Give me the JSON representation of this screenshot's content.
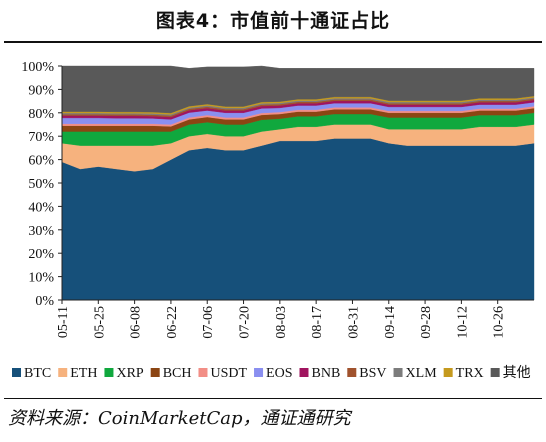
{
  "title": "图表4：市值前十通证占比",
  "source": "资料来源：CoinMarketCap，通证通研究",
  "chart_data": {
    "type": "area",
    "stacked": true,
    "title": "图表4：市值前十通证占比",
    "xlabel": "",
    "ylabel": "",
    "ylim": [
      0,
      100
    ],
    "y_ticks": [
      "0%",
      "10%",
      "20%",
      "30%",
      "40%",
      "50%",
      "60%",
      "70%",
      "80%",
      "90%",
      "100%"
    ],
    "x_tick_labels": [
      "05-11",
      "05-25",
      "06-08",
      "06-22",
      "07-06",
      "07-20",
      "08-03",
      "08-17",
      "08-31",
      "09-14",
      "09-28",
      "10-12",
      "10-26"
    ],
    "x": [
      "05-11",
      "05-18",
      "05-25",
      "06-01",
      "06-08",
      "06-15",
      "06-22",
      "06-29",
      "07-06",
      "07-13",
      "07-20",
      "07-27",
      "08-03",
      "08-10",
      "08-17",
      "08-24",
      "08-31",
      "09-07",
      "09-14",
      "09-21",
      "09-28",
      "10-05",
      "10-12",
      "10-19",
      "10-26",
      "11-02",
      "11-05"
    ],
    "legend_position": "bottom",
    "grid": false,
    "series": [
      {
        "name": "BTC",
        "color": "#16507a",
        "values": [
          59,
          56,
          57,
          56,
          55,
          56,
          60,
          64,
          65,
          64,
          64,
          66,
          68,
          68,
          68,
          69,
          69,
          69,
          67,
          66,
          66,
          66,
          66,
          66,
          66,
          66,
          67
        ]
      },
      {
        "name": "ETH",
        "color": "#f6b27e",
        "values": [
          8,
          10,
          9,
          10,
          11,
          10,
          7,
          6,
          6,
          6,
          6,
          6,
          5,
          6,
          6,
          6,
          6,
          6,
          6,
          7,
          7,
          7,
          7,
          8,
          8,
          8,
          8
        ]
      },
      {
        "name": "XRP",
        "color": "#10a83e",
        "values": [
          5,
          6,
          6,
          6,
          6,
          6,
          5,
          5,
          5,
          5,
          5,
          5,
          4.5,
          4.5,
          4.5,
          4.5,
          4.5,
          4.5,
          5,
          5,
          5,
          5,
          5,
          5,
          5,
          5,
          5
        ]
      },
      {
        "name": "BCH",
        "color": "#8b4513",
        "values": [
          2.5,
          2.5,
          2.5,
          2.5,
          2.5,
          2.5,
          2.2,
          2.2,
          2.2,
          2.2,
          2.2,
          2.1,
          2,
          2,
          2,
          2,
          2,
          2,
          2,
          2,
          2,
          2,
          2,
          2,
          2,
          2,
          2
        ]
      },
      {
        "name": "USDT",
        "color": "#f28e86",
        "values": [
          0.8,
          0.8,
          0.8,
          0.8,
          0.8,
          0.8,
          0.8,
          0.8,
          0.8,
          0.8,
          0.8,
          0.8,
          0.8,
          0.8,
          0.8,
          0.8,
          0.8,
          0.8,
          0.8,
          0.8,
          0.8,
          0.8,
          0.8,
          0.8,
          0.8,
          0.8,
          0.8
        ]
      },
      {
        "name": "EOS",
        "color": "#8a8ff0",
        "values": [
          2.5,
          2.5,
          2.5,
          2.4,
          2.4,
          2.3,
          2.2,
          2.1,
          2,
          2,
          2,
          2,
          1.8,
          1.8,
          1.8,
          1.8,
          1.8,
          1.8,
          1.7,
          1.7,
          1.7,
          1.7,
          1.7,
          1.7,
          1.7,
          1.7,
          1.7
        ]
      },
      {
        "name": "BNB",
        "color": "#a0145f",
        "values": [
          1,
          1,
          1,
          1,
          1,
          1,
          1,
          1,
          1,
          1,
          1,
          1,
          1,
          1,
          1,
          1,
          1,
          1,
          1,
          1,
          1,
          1,
          1,
          1,
          1,
          1,
          1
        ]
      },
      {
        "name": "BSV",
        "color": "#a0522d",
        "values": [
          0.6,
          0.6,
          0.6,
          0.6,
          0.6,
          0.6,
          0.6,
          0.6,
          0.6,
          0.6,
          0.6,
          0.6,
          0.6,
          0.6,
          0.6,
          0.6,
          0.6,
          0.6,
          0.6,
          0.6,
          0.6,
          0.6,
          0.6,
          0.6,
          0.6,
          0.6,
          0.6
        ]
      },
      {
        "name": "XLM",
        "color": "#7c7c7c",
        "values": [
          0.5,
          0.5,
          0.5,
          0.5,
          0.5,
          0.5,
          0.5,
          0.5,
          0.5,
          0.5,
          0.5,
          0.5,
          0.5,
          0.5,
          0.5,
          0.5,
          0.5,
          0.5,
          0.5,
          0.5,
          0.5,
          0.5,
          0.5,
          0.5,
          0.5,
          0.5,
          0.5
        ]
      },
      {
        "name": "TRX",
        "color": "#c59a1e",
        "values": [
          0.6,
          0.6,
          0.6,
          0.6,
          0.6,
          0.6,
          0.6,
          0.6,
          0.6,
          0.6,
          0.6,
          0.6,
          0.6,
          0.6,
          0.6,
          0.6,
          0.6,
          0.6,
          0.6,
          0.6,
          0.6,
          0.6,
          0.6,
          0.6,
          0.6,
          0.6,
          0.6
        ]
      },
      {
        "name": "其他",
        "color": "#595959",
        "values": [
          19.5,
          19.5,
          19.5,
          19.6,
          19.6,
          19.7,
          20.1,
          16.2,
          15.9,
          16.9,
          16.9,
          15.4,
          14.2,
          13.2,
          13.2,
          12.2,
          12.2,
          12.2,
          13.8,
          13.8,
          13.8,
          13.8,
          13.8,
          12.8,
          12.8,
          12.8,
          11.8
        ]
      }
    ]
  }
}
